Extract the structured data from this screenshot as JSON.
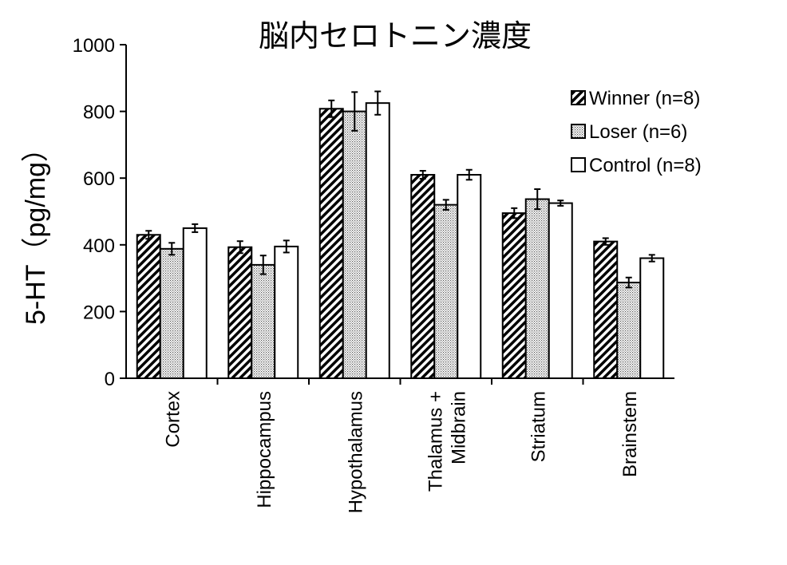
{
  "chart_data": {
    "type": "bar",
    "title": "脳内セロトニン濃度",
    "ylabel": "5-HT（pg/mg）",
    "xlabel": "",
    "ylim": [
      0,
      1000
    ],
    "yticks": [
      0,
      200,
      400,
      600,
      800,
      1000
    ],
    "grid": false,
    "legend_position": "top-right",
    "categories": [
      [
        "Cortex"
      ],
      [
        "Hippocampus"
      ],
      [
        "Hypothalamus"
      ],
      [
        "Thalamus +",
        "Midbrain"
      ],
      [
        "Striatum"
      ],
      [
        "Brainstem"
      ]
    ],
    "series": [
      {
        "name": "Winner (n=8)",
        "pattern": "diagonal-hatch",
        "values": [
          430,
          393,
          808,
          610,
          495,
          410
        ],
        "errors": [
          12,
          18,
          25,
          12,
          15,
          10
        ]
      },
      {
        "name": "Loser (n=6)",
        "pattern": "dots",
        "values": [
          388,
          340,
          800,
          520,
          537,
          287
        ],
        "errors": [
          18,
          28,
          58,
          15,
          30,
          15
        ]
      },
      {
        "name": "Control (n=8)",
        "pattern": "white",
        "values": [
          450,
          395,
          825,
          610,
          525,
          360
        ],
        "errors": [
          12,
          18,
          35,
          15,
          8,
          10
        ]
      }
    ]
  }
}
